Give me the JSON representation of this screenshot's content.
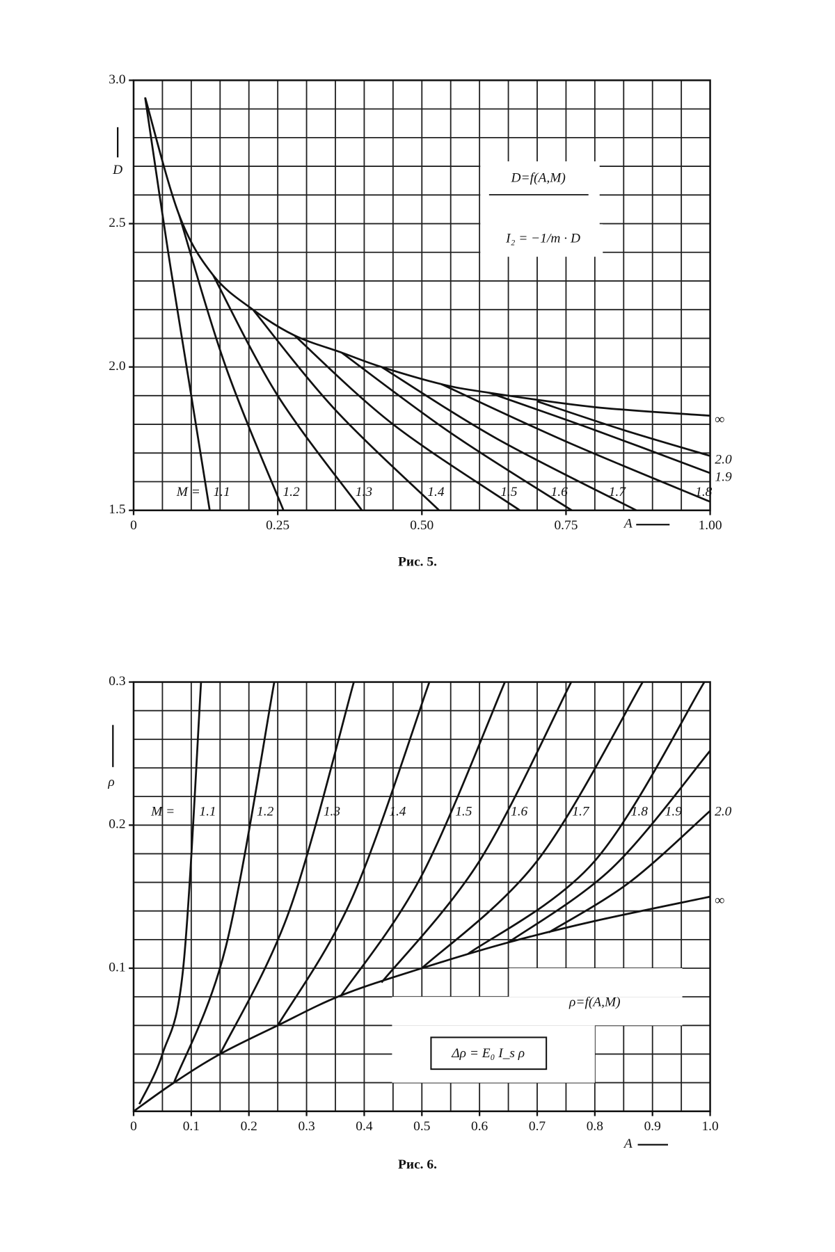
{
  "chart_data": [
    {
      "type": "line",
      "caption": "Рис. 5.",
      "ylabel": "D",
      "xlabel": "A",
      "m_label": "M =",
      "annotations": [
        "D=f(A,M)",
        "I₂ = −1/m · D"
      ],
      "xlim": [
        0,
        1
      ],
      "ylim": [
        1.5,
        3.0
      ],
      "xticks": [
        0,
        0.25,
        {
          "value": 0.5,
          "label": "0.50"
        },
        0.75,
        {
          "value": 1,
          "label": "1.00"
        }
      ],
      "yticks": [
        1.5,
        {
          "value": 2,
          "label": "2.0"
        },
        2.5,
        {
          "value": 3,
          "label": "3.0"
        }
      ],
      "xminor": [
        0,
        0.05,
        0.1,
        0.15,
        0.2,
        0.25,
        0.3,
        0.35,
        0.4,
        0.45,
        0.5,
        0.55,
        0.6,
        0.65,
        0.7,
        0.75,
        0.8,
        0.85,
        0.9,
        0.95,
        1
      ],
      "yminor": [
        1.5,
        1.6,
        1.7,
        1.8,
        1.9,
        2.0,
        2.1,
        2.2,
        2.3,
        2.4,
        2.5,
        2.6,
        2.7,
        2.8,
        2.9,
        3.0
      ],
      "grid": true,
      "color": "#111111",
      "series": [
        {
          "name": "∞",
          "x": [
            0.02,
            0.079,
            0.138,
            0.207,
            0.279,
            0.361,
            0.43,
            0.534,
            0.617,
            0.8,
            1.0
          ],
          "values": [
            2.94,
            2.53,
            2.32,
            2.2,
            2.11,
            2.05,
            2.0,
            1.94,
            1.91,
            1.86,
            1.83
          ]
        },
        {
          "name": "1.1",
          "x": [
            0.02,
            0.06,
            0.1,
            0.132
          ],
          "values": [
            2.94,
            2.4,
            1.9,
            1.5
          ]
        },
        {
          "name": "1.2",
          "x": [
            0.079,
            0.16,
            0.26
          ],
          "values": [
            2.53,
            2.0,
            1.5
          ]
        },
        {
          "name": "1.3",
          "x": [
            0.138,
            0.25,
            0.396
          ],
          "values": [
            2.32,
            1.9,
            1.5
          ]
        },
        {
          "name": "1.4",
          "x": [
            0.207,
            0.35,
            0.53
          ],
          "values": [
            2.2,
            1.85,
            1.5
          ]
        },
        {
          "name": "1.5",
          "x": [
            0.279,
            0.45,
            0.67
          ],
          "values": [
            2.11,
            1.8,
            1.5
          ]
        },
        {
          "name": "1.6",
          "x": [
            0.361,
            0.55,
            0.76
          ],
          "values": [
            2.05,
            1.77,
            1.5
          ]
        },
        {
          "name": "1.7",
          "x": [
            0.43,
            0.63,
            0.872
          ],
          "values": [
            2.0,
            1.75,
            1.5
          ]
        },
        {
          "name": "1.8",
          "x": [
            0.534,
            0.75,
            1.0
          ],
          "values": [
            1.94,
            1.74,
            1.53
          ]
        },
        {
          "name": "1.9",
          "x": [
            0.617,
            0.8,
            1.0
          ],
          "values": [
            1.91,
            1.78,
            1.63
          ]
        },
        {
          "name": "2.0",
          "x": [
            0.7,
            0.85,
            1.0
          ],
          "values": [
            1.88,
            1.78,
            1.69
          ]
        }
      ]
    },
    {
      "type": "line",
      "caption": "Рис. 6.",
      "ylabel": "ρ",
      "xlabel": "A",
      "m_label": "M =",
      "annotations": [
        "ρ=f(A,M)",
        "Δρ = E₀ I_s ρ"
      ],
      "xlim": [
        0,
        1
      ],
      "ylim": [
        0,
        0.3
      ],
      "xticks": [
        0,
        0.1,
        0.2,
        0.3,
        0.4,
        0.5,
        0.6,
        0.7,
        0.8,
        0.9,
        {
          "value": 1,
          "label": "1.0"
        }
      ],
      "yticks": [
        0.1,
        0.2,
        0.3
      ],
      "xminor": [
        0,
        0.05,
        0.1,
        0.15,
        0.2,
        0.25,
        0.3,
        0.35,
        0.4,
        0.45,
        0.5,
        0.55,
        0.6,
        0.65,
        0.7,
        0.75,
        0.8,
        0.85,
        0.9,
        0.95,
        1
      ],
      "yminor": [
        0,
        0.02,
        0.04,
        0.06,
        0.08,
        0.1,
        0.12,
        0.14,
        0.16,
        0.18,
        0.2,
        0.22,
        0.24,
        0.26,
        0.28,
        0.3
      ],
      "grid": true,
      "color": "#111111",
      "series": [
        {
          "name": "∞",
          "x": [
            0,
            0.07,
            0.15,
            0.25,
            0.36,
            0.5,
            0.65,
            0.8,
            1.0
          ],
          "values": [
            0,
            0.02,
            0.04,
            0.06,
            0.081,
            0.1,
            0.118,
            0.133,
            0.15
          ]
        },
        {
          "name": "1.1",
          "x": [
            0.01,
            0.05,
            0.086,
            0.117
          ],
          "values": [
            0.005,
            0.04,
            0.1,
            0.3
          ]
        },
        {
          "name": "1.2",
          "x": [
            0.07,
            0.16,
            0.244
          ],
          "values": [
            0.02,
            0.115,
            0.3
          ]
        },
        {
          "name": "1.3",
          "x": [
            0.15,
            0.27,
            0.382
          ],
          "values": [
            0.04,
            0.14,
            0.3
          ]
        },
        {
          "name": "1.4",
          "x": [
            0.25,
            0.38,
            0.513
          ],
          "values": [
            0.06,
            0.15,
            0.3
          ]
        },
        {
          "name": "1.5",
          "x": [
            0.36,
            0.5,
            0.644
          ],
          "values": [
            0.081,
            0.165,
            0.3
          ]
        },
        {
          "name": "1.6",
          "x": [
            0.43,
            0.6,
            0.759
          ],
          "values": [
            0.09,
            0.175,
            0.3
          ]
        },
        {
          "name": "1.7",
          "x": [
            0.5,
            0.7,
            0.883
          ],
          "values": [
            0.1,
            0.175,
            0.3
          ]
        },
        {
          "name": "1.8",
          "x": [
            0.58,
            0.8,
            0.99
          ],
          "values": [
            0.11,
            0.175,
            0.3
          ]
        },
        {
          "name": "1.9",
          "x": [
            0.65,
            0.83,
            1.0
          ],
          "values": [
            0.118,
            0.17,
            0.252
          ]
        },
        {
          "name": "2.0",
          "x": [
            0.72,
            0.86,
            1.0
          ],
          "values": [
            0.125,
            0.16,
            0.21
          ]
        }
      ]
    }
  ]
}
